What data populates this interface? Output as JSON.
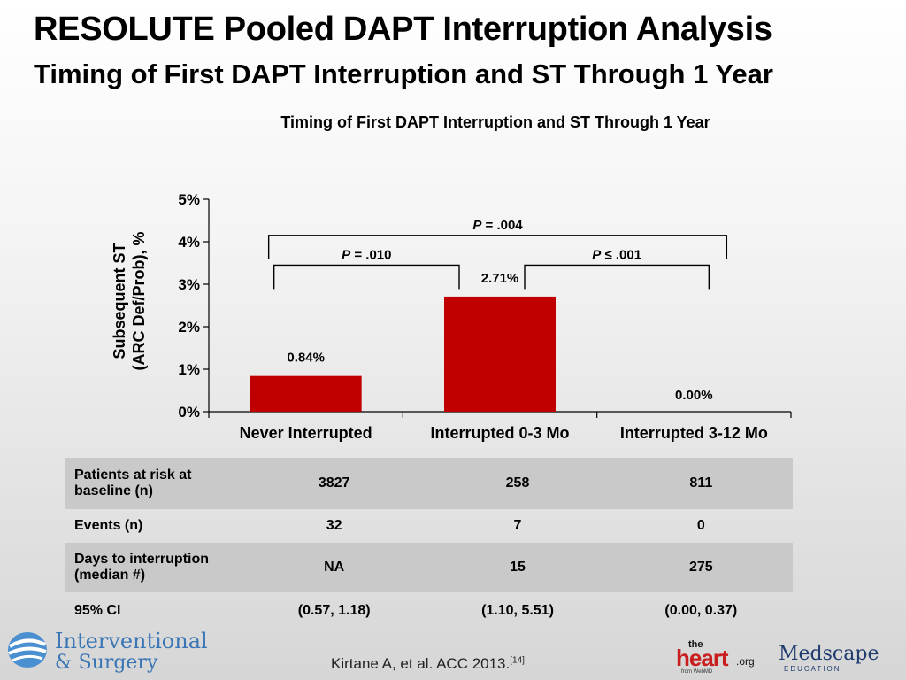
{
  "header": {
    "title": "RESOLUTE Pooled DAPT Interruption Analysis",
    "subtitle": "Timing of First DAPT Interruption and ST Through 1 Year"
  },
  "chart_data": {
    "type": "bar",
    "title": "Timing of First DAPT Interruption and ST Through 1 Year",
    "xlabel": "",
    "ylabel_line1": "Subsequent ST",
    "ylabel_line2": "(ARC Def/Prob), %",
    "categories": [
      "Never Interrupted",
      "Interrupted 0-3 Mo",
      "Interrupted 3-12 Mo"
    ],
    "values": [
      0.84,
      2.71,
      0.0
    ],
    "value_labels": [
      "0.84%",
      "2.71%",
      "0.00%"
    ],
    "ylim": [
      0,
      5
    ],
    "yticks": [
      0,
      1,
      2,
      3,
      4,
      5
    ],
    "ytick_labels": [
      "0%",
      "1%",
      "2%",
      "3%",
      "4%",
      "5%"
    ],
    "bar_color": "#c00000",
    "comparisons": [
      {
        "from": 0,
        "to": 1,
        "label_prefix": "P",
        "label_rest": " = .010",
        "level": 3.45
      },
      {
        "from": 1,
        "to": 2,
        "label_prefix": "P",
        "label_rest": " ≤ .001",
        "level": 3.45
      },
      {
        "from": 0,
        "to": 2,
        "label_prefix": "P",
        "label_rest": " = .004",
        "level": 4.15
      }
    ]
  },
  "table": {
    "rows": [
      {
        "label": "Patients at risk at baseline  (n)",
        "values": [
          "3827",
          "258",
          "811"
        ]
      },
      {
        "label": "Events (n)",
        "values": [
          "32",
          "7",
          "0"
        ]
      },
      {
        "label": "Days to interruption (median #)",
        "values": [
          "NA",
          "15",
          "275"
        ]
      },
      {
        "label": "95% CI",
        "values": [
          "(0.57, 1.18)",
          "(1.10, 5.51)",
          "(0.00, 0.37)"
        ]
      }
    ]
  },
  "footer": {
    "logo_left_line1": "Interventional",
    "logo_left_line2": "& Surgery",
    "citation": "Kirtane A, et al. ACC 2013.",
    "citation_ref": "[14]",
    "heart_logo_the": "the",
    "heart_logo_heart": "heart",
    "heart_logo_org": ".org",
    "heart_logo_webmd": "from WebMD",
    "medscape_logo": "Medscape",
    "medscape_sub": "EDUCATION"
  }
}
